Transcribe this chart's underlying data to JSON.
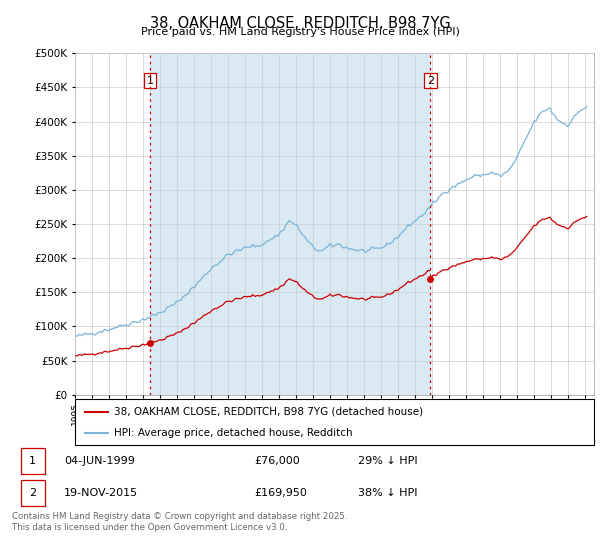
{
  "title": "38, OAKHAM CLOSE, REDDITCH, B98 7YG",
  "subtitle": "Price paid vs. HM Land Registry's House Price Index (HPI)",
  "ytick_values": [
    0,
    50000,
    100000,
    150000,
    200000,
    250000,
    300000,
    350000,
    400000,
    450000,
    500000
  ],
  "ylim": [
    0,
    500000
  ],
  "xlim_start": 1995.0,
  "xlim_end": 2025.5,
  "hpi_color": "#7ab4d8",
  "hpi_fill_color": "#daeaf5",
  "price_color": "#cc0000",
  "vline_color": "#cc0000",
  "annotation1_label": "1",
  "annotation2_label": "2",
  "legend_line1": "38, OAKHAM CLOSE, REDDITCH, B98 7YG (detached house)",
  "legend_line2": "HPI: Average price, detached house, Redditch",
  "table_row1": [
    "1",
    "04-JUN-1999",
    "£76,000",
    "29% ↓ HPI"
  ],
  "table_row2": [
    "2",
    "19-NOV-2015",
    "£169,950",
    "38% ↓ HPI"
  ],
  "footnote": "Contains HM Land Registry data © Crown copyright and database right 2025.\nThis data is licensed under the Open Government Licence v3.0.",
  "background_color": "#ffffff",
  "grid_color": "#cccccc",
  "marker1_date": 1999.42,
  "marker2_date": 2015.89,
  "marker1_price": 76000,
  "marker2_price": 169950
}
